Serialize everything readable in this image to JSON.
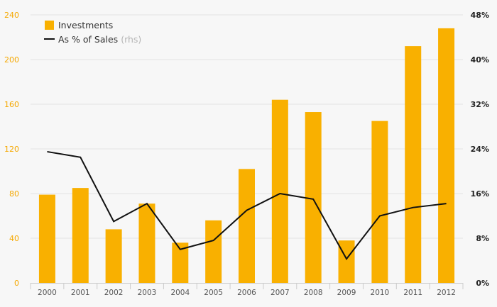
{
  "chart_data": {
    "type": "bar",
    "categories": [
      "2000",
      "2001",
      "2002",
      "2003",
      "2004",
      "2005",
      "2006",
      "2007",
      "2008",
      "2009",
      "2010",
      "2011",
      "2012"
    ],
    "series": [
      {
        "name": "Investments",
        "type": "bar",
        "axis": "left",
        "color": "#f9b000",
        "values": [
          79,
          85,
          48,
          71,
          36,
          56,
          102,
          164,
          153,
          38,
          145,
          212,
          228
        ]
      },
      {
        "name": "As % of Sales",
        "axis_note": "(rhs)",
        "type": "line",
        "axis": "right",
        "color": "#111111",
        "values": [
          23.5,
          22.5,
          11,
          14.2,
          6,
          7.6,
          13,
          16,
          15,
          4.3,
          12,
          13.5,
          14.2
        ]
      }
    ],
    "ylim_left": [
      0,
      240
    ],
    "yticks_left": [
      "0",
      "40",
      "80",
      "120",
      "160",
      "200",
      "240"
    ],
    "ylim_right": [
      0,
      48
    ],
    "yticks_right": [
      "0%",
      "8%",
      "16%",
      "24%",
      "32%",
      "40%",
      "48%"
    ],
    "grid": true,
    "legend_position": "top-left"
  }
}
